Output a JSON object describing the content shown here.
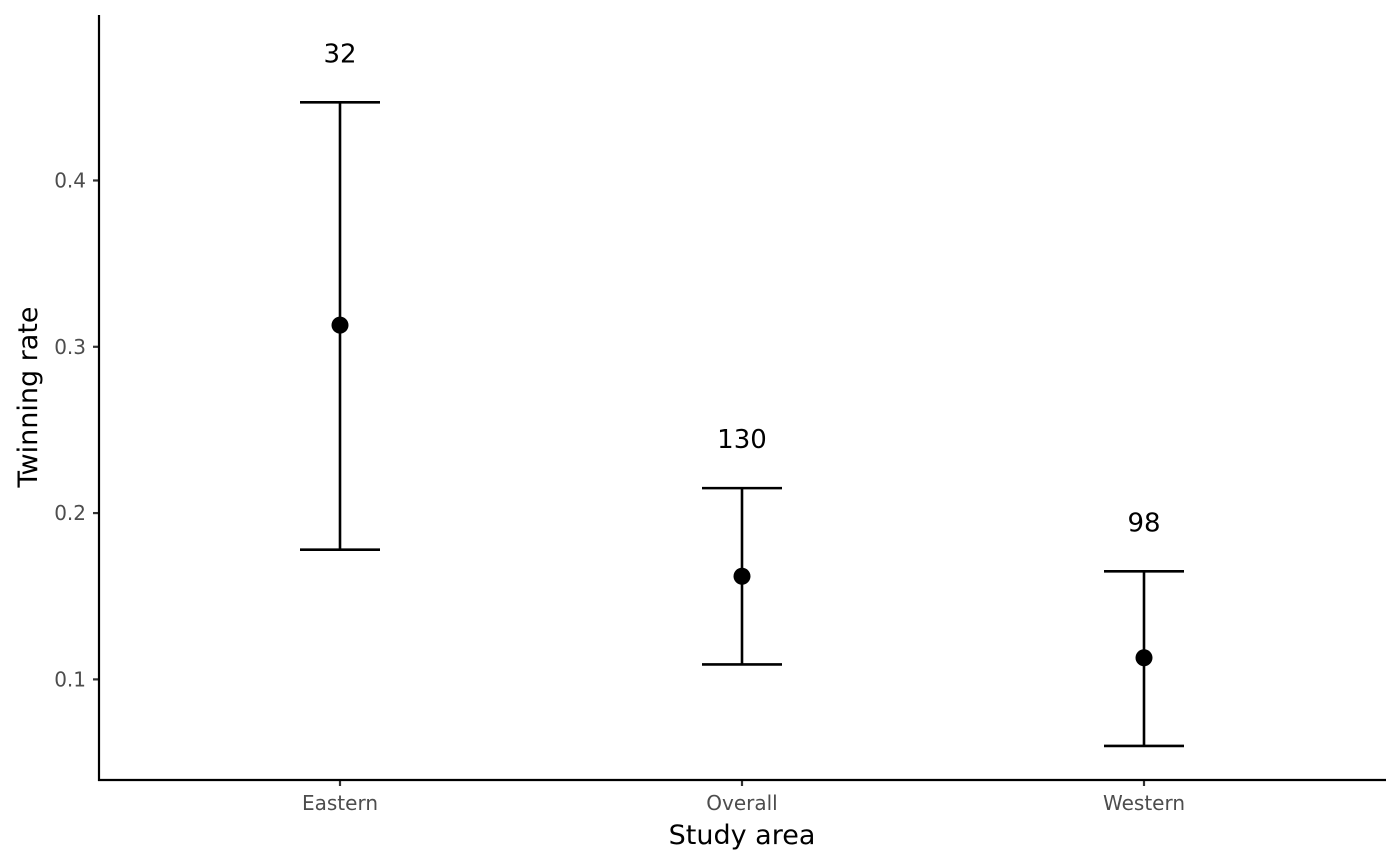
{
  "chart_data": {
    "type": "scatter",
    "xlabel": "Study area",
    "ylabel": "Twinning rate",
    "categories": [
      "Eastern",
      "Overall",
      "Western"
    ],
    "estimates": [
      0.313,
      0.162,
      0.113
    ],
    "lower": [
      0.178,
      0.109,
      0.06
    ],
    "upper": [
      0.447,
      0.215,
      0.165
    ],
    "n_labels": [
      "32",
      "130",
      "98"
    ],
    "yticks": [
      0.1,
      0.2,
      0.3,
      0.4
    ],
    "ytick_labels": [
      "0.1",
      "0.2",
      "0.3",
      "0.4"
    ],
    "ylim": [
      0.0395,
      0.4995
    ],
    "grid": false,
    "point_color": "#000000"
  }
}
